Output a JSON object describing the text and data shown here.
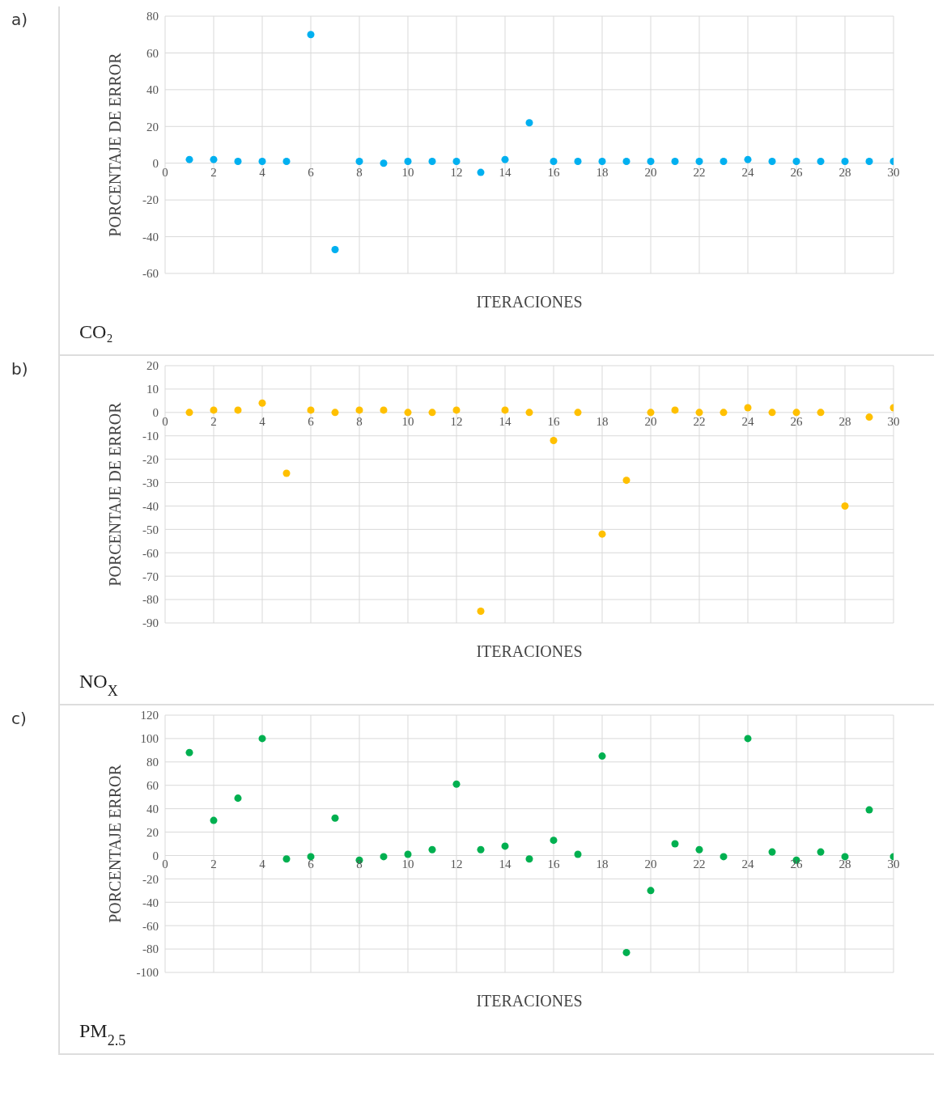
{
  "chart_data": [
    {
      "type": "scatter",
      "title": "CO₂",
      "xlabel": "ITERACIONES",
      "ylabel": "PORCENTAJE DE ERROR",
      "annotations": [
        "a)"
      ],
      "x": [
        1,
        2,
        3,
        4,
        5,
        6,
        7,
        8,
        9,
        10,
        11,
        12,
        13,
        14,
        15,
        16,
        17,
        18,
        19,
        20,
        21,
        22,
        23,
        24,
        25,
        26,
        27,
        28,
        29,
        30
      ],
      "series": [
        {
          "color": "#00b0f0",
          "values": [
            2,
            2,
            1,
            1,
            1,
            70,
            -47,
            1,
            0,
            1,
            1,
            1,
            -5,
            2,
            22,
            1,
            1,
            1,
            1,
            1,
            1,
            1,
            1,
            2,
            1,
            1,
            1,
            1,
            1,
            1
          ]
        }
      ],
      "xlim": [
        0,
        30
      ],
      "xticks": [
        0,
        2,
        4,
        6,
        8,
        10,
        12,
        14,
        16,
        18,
        20,
        22,
        24,
        26,
        28,
        30
      ],
      "ylim": [
        -60,
        80
      ],
      "yticks": [
        -60,
        -40,
        -20,
        0,
        20,
        40,
        60,
        80
      ],
      "grid": true,
      "marker": "circle",
      "legend": false
    },
    {
      "type": "scatter",
      "title": "NO$_{X}$",
      "xlabel": "ITERACIONES",
      "ylabel": "PORCENTAJE DE ERROR",
      "annotations": [
        "b)"
      ],
      "x": [
        1,
        2,
        3,
        4,
        5,
        6,
        7,
        8,
        9,
        10,
        11,
        12,
        13,
        14,
        15,
        16,
        17,
        18,
        19,
        20,
        21,
        22,
        23,
        24,
        25,
        26,
        27,
        28,
        29,
        30
      ],
      "series": [
        {
          "color": "#ffc000",
          "values": [
            0,
            1,
            1,
            4,
            -26,
            1,
            0,
            1,
            1,
            0,
            0,
            1,
            -85,
            1,
            0,
            -12,
            0,
            -52,
            -29,
            0,
            1,
            0,
            0,
            2,
            0,
            0,
            0,
            -40,
            -2,
            2
          ]
        }
      ],
      "xlim": [
        0,
        30
      ],
      "xticks": [
        0,
        2,
        4,
        6,
        8,
        10,
        12,
        14,
        16,
        18,
        20,
        22,
        24,
        26,
        28,
        30
      ],
      "ylim": [
        -90,
        20
      ],
      "yticks": [
        -90,
        -80,
        -70,
        -60,
        -50,
        -40,
        -30,
        -20,
        -10,
        0,
        10,
        20
      ],
      "grid": true,
      "marker": "circle",
      "legend": false
    },
    {
      "type": "scatter",
      "title": "PM$_{2.5}$",
      "xlabel": "ITERACIONES",
      "ylabel": "PORCENTAJE ERROR",
      "annotations": [
        "c)"
      ],
      "x": [
        1,
        2,
        3,
        4,
        5,
        6,
        7,
        8,
        9,
        10,
        11,
        12,
        13,
        14,
        15,
        16,
        17,
        18,
        19,
        20,
        21,
        22,
        23,
        24,
        25,
        26,
        27,
        28,
        29,
        30
      ],
      "series": [
        {
          "color": "#00b050",
          "values": [
            88,
            30,
            49,
            100,
            -3,
            -1,
            32,
            -4,
            -1,
            1,
            5,
            61,
            5,
            8,
            -3,
            13,
            1,
            85,
            -83,
            -30,
            10,
            5,
            -1,
            100,
            3,
            -4,
            3,
            -1,
            39,
            -1
          ]
        }
      ],
      "xlim": [
        0,
        30
      ],
      "xticks": [
        0,
        2,
        4,
        6,
        8,
        10,
        12,
        14,
        16,
        18,
        20,
        22,
        24,
        26,
        28,
        30
      ],
      "ylim": [
        -100,
        120
      ],
      "yticks": [
        -100,
        -80,
        -60,
        -40,
        -20,
        0,
        20,
        40,
        60,
        80,
        100,
        120
      ],
      "grid": true,
      "marker": "circle",
      "legend": false
    }
  ]
}
